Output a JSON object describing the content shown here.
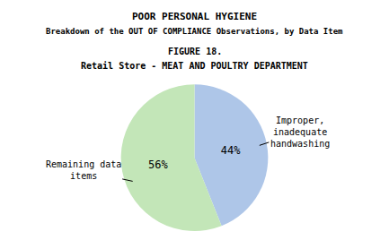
{
  "chart_data": {
    "type": "pie",
    "title": "POOR PERSONAL HYGIENE",
    "subtitle": "Breakdown of the OUT OF COMPLIANCE Observations, by Data Item",
    "annotations": [
      "FIGURE 18.",
      "Retail Store - MEAT AND POULTRY DEPARTMENT"
    ],
    "categories": [
      "Improper,\ninadequate\nhandwashing",
      "Remaining data\nitems"
    ],
    "values": [
      44,
      56
    ],
    "value_labels": [
      "44%",
      "56%"
    ],
    "data_labels": true,
    "colors": [
      "#aec6e8",
      "#c3e6b8"
    ]
  }
}
